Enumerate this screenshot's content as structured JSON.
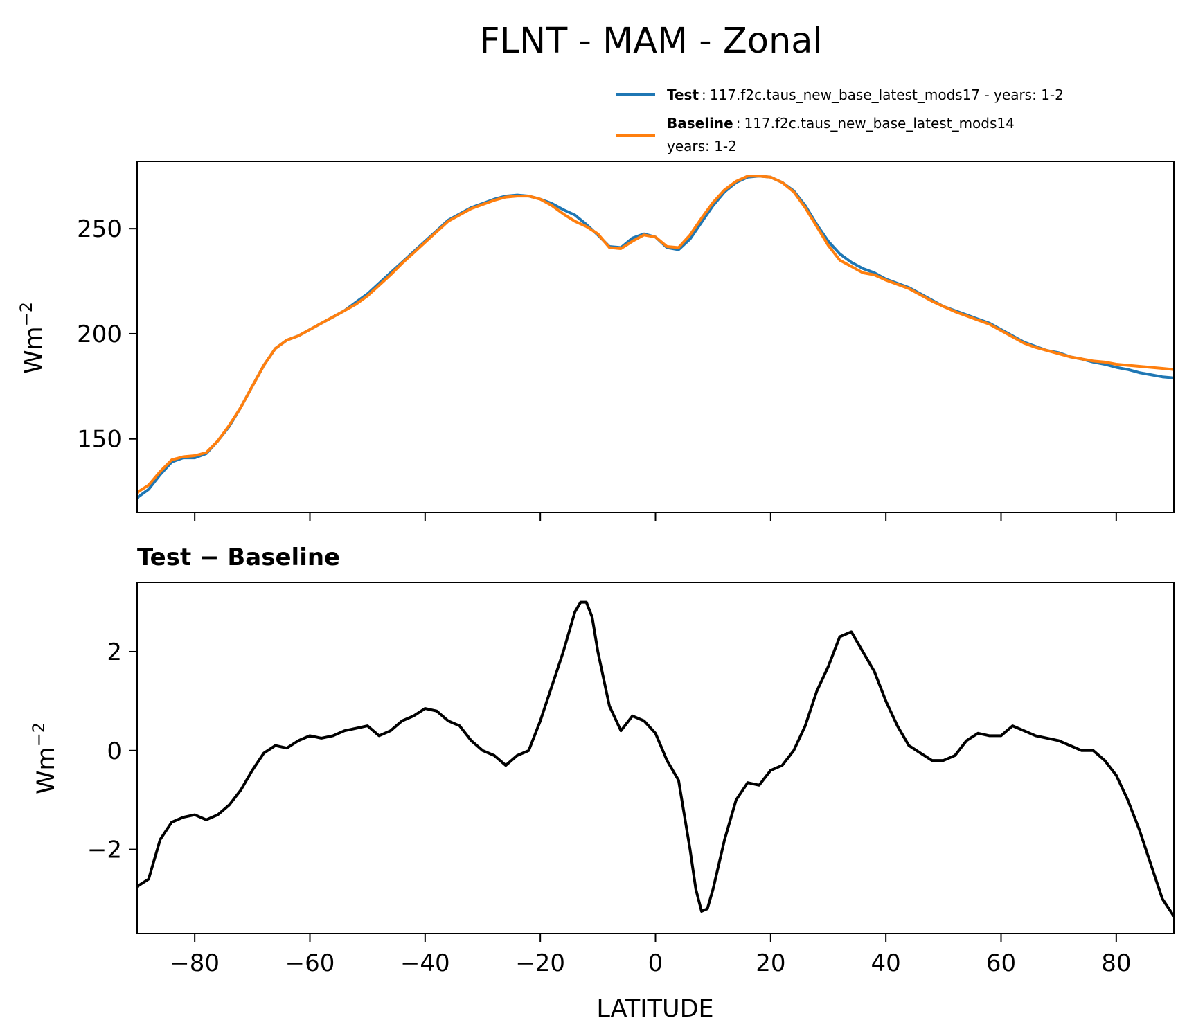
{
  "title": "FLNT - MAM - Zonal",
  "legend": [
    {
      "name": "Test",
      "separator": ":",
      "text": "117.f2c.taus_new_base_latest_mods17 - years: 1-2",
      "text2": "",
      "color": "#1f77b4"
    },
    {
      "name": "Baseline",
      "separator": ":",
      "text": "117.f2c.taus_new_base_latest_mods14",
      "text2": "years: 1-2",
      "color": "#ff7f0e"
    }
  ],
  "chart_data": [
    {
      "type": "line",
      "xlabel": "",
      "ylabel": "Wm",
      "ylabel_sup": "−2",
      "xlim": [
        -90,
        90
      ],
      "ylim": [
        115,
        282
      ],
      "xticks": [
        -80,
        -60,
        -40,
        -20,
        0,
        20,
        40,
        60,
        80
      ],
      "yticks": [
        150,
        200,
        250
      ],
      "ytick_labels": [
        "150",
        "200",
        "250"
      ],
      "legend_placement": "above top-right",
      "grid": false,
      "x": [
        -90,
        -88,
        -86,
        -84,
        -82,
        -80,
        -78,
        -76,
        -74,
        -72,
        -70,
        -68,
        -66,
        -64,
        -62,
        -60,
        -58,
        -56,
        -54,
        -52,
        -50,
        -48,
        -46,
        -44,
        -42,
        -40,
        -38,
        -36,
        -34,
        -32,
        -30,
        -28,
        -26,
        -24,
        -22,
        -20,
        -18,
        -16,
        -14,
        -12,
        -10,
        -8,
        -6,
        -4,
        -2,
        0,
        2,
        4,
        6,
        8,
        10,
        12,
        14,
        16,
        18,
        20,
        22,
        24,
        26,
        28,
        30,
        32,
        34,
        36,
        38,
        40,
        42,
        44,
        46,
        48,
        50,
        52,
        54,
        56,
        58,
        60,
        62,
        64,
        66,
        68,
        70,
        72,
        74,
        76,
        78,
        80,
        82,
        84,
        86,
        88,
        90
      ],
      "series": [
        {
          "name": "Test",
          "color": "#1f77b4",
          "values": [
            122,
            126,
            133,
            139,
            141,
            141,
            143,
            149,
            156,
            165,
            175,
            185,
            193,
            197,
            199,
            202,
            205,
            208,
            211,
            215,
            219,
            224,
            229,
            234,
            239,
            244,
            249,
            254,
            257,
            260,
            262,
            264,
            265.5,
            266,
            265.5,
            264,
            262,
            259,
            256.5,
            252,
            247,
            241.5,
            241,
            245.5,
            247.5,
            246,
            241,
            240,
            245,
            253,
            261,
            267.5,
            272,
            274.5,
            275,
            274.5,
            272,
            268,
            261,
            252,
            244,
            238,
            234,
            231,
            229,
            226,
            224,
            222,
            219,
            216,
            213,
            211,
            209,
            207,
            205,
            202,
            199,
            196,
            194,
            192,
            191,
            189,
            188,
            186.5,
            185.5,
            184,
            183,
            181.5,
            180.5,
            179.5,
            179
          ]
        },
        {
          "name": "Baseline",
          "color": "#ff7f0e",
          "values": [
            124.5,
            128,
            134.5,
            140,
            141.5,
            142,
            143.5,
            149,
            156.5,
            165,
            175,
            185,
            193,
            197,
            199,
            202,
            205,
            208,
            211,
            214,
            218,
            223,
            228,
            233.5,
            238.5,
            243.5,
            248.5,
            253.5,
            256.5,
            259.5,
            261.5,
            263.5,
            265,
            265.5,
            265.5,
            264,
            261,
            257,
            253.5,
            251,
            247.5,
            241,
            240.5,
            244,
            247,
            246,
            241.5,
            241,
            247,
            255,
            262.5,
            268.5,
            272.5,
            275,
            275,
            274.5,
            272,
            267.5,
            260,
            251,
            242,
            235,
            232,
            229,
            228,
            225.5,
            223.5,
            221.5,
            218.5,
            215.5,
            213,
            210.5,
            208.5,
            206.5,
            204.5,
            201.5,
            198.5,
            195.5,
            193.5,
            192,
            190.5,
            189,
            188,
            187,
            186.5,
            185.5,
            185,
            184.5,
            184,
            183.5,
            183
          ]
        }
      ]
    },
    {
      "type": "line",
      "title": "Test − Baseline",
      "xlabel": "LATITUDE",
      "ylabel": "Wm",
      "ylabel_sup": "−2",
      "xlim": [
        -90,
        90
      ],
      "ylim": [
        -3.7,
        3.4
      ],
      "xticks": [
        -80,
        -60,
        -40,
        -20,
        0,
        20,
        40,
        60,
        80
      ],
      "xtick_labels": [
        "−80",
        "−60",
        "−40",
        "−20",
        "0",
        "20",
        "40",
        "60",
        "80"
      ],
      "yticks": [
        -2,
        0,
        2
      ],
      "ytick_labels": [
        "−2",
        "0",
        "2"
      ],
      "grid": false,
      "x": [
        -90,
        -88,
        -86,
        -84,
        -82,
        -80,
        -78,
        -76,
        -74,
        -72,
        -70,
        -68,
        -66,
        -64,
        -62,
        -60,
        -58,
        -56,
        -54,
        -52,
        -50,
        -48,
        -46,
        -44,
        -42,
        -40,
        -38,
        -36,
        -34,
        -32,
        -30,
        -28,
        -26,
        -24,
        -22,
        -20,
        -18,
        -16,
        -14,
        -13,
        -12,
        -11,
        -10,
        -8,
        -6,
        -4,
        -2,
        0,
        2,
        4,
        6,
        7,
        8,
        9,
        10,
        12,
        14,
        16,
        18,
        20,
        22,
        24,
        26,
        28,
        30,
        32,
        34,
        36,
        38,
        40,
        42,
        44,
        46,
        48,
        50,
        52,
        54,
        56,
        58,
        60,
        62,
        64,
        66,
        68,
        70,
        72,
        74,
        76,
        78,
        80,
        82,
        84,
        86,
        88,
        90
      ],
      "series": [
        {
          "name": "",
          "color": "#000000",
          "values": [
            -2.75,
            -2.6,
            -1.8,
            -1.45,
            -1.35,
            -1.3,
            -1.4,
            -1.3,
            -1.1,
            -0.8,
            -0.4,
            -0.05,
            0.1,
            0.05,
            0.2,
            0.3,
            0.25,
            0.3,
            0.4,
            0.45,
            0.5,
            0.3,
            0.4,
            0.6,
            0.7,
            0.85,
            0.8,
            0.6,
            0.5,
            0.2,
            0.0,
            -0.1,
            -0.3,
            -0.1,
            0.0,
            0.6,
            1.3,
            2.0,
            2.8,
            3.0,
            3.0,
            2.7,
            2.0,
            0.9,
            0.4,
            0.7,
            0.6,
            0.35,
            -0.2,
            -0.6,
            -2.0,
            -2.8,
            -3.25,
            -3.2,
            -2.8,
            -1.8,
            -1.0,
            -0.65,
            -0.7,
            -0.4,
            -0.3,
            0.0,
            0.5,
            1.2,
            1.7,
            2.3,
            2.4,
            2.0,
            1.6,
            1.0,
            0.5,
            0.1,
            -0.05,
            -0.2,
            -0.2,
            -0.1,
            0.2,
            0.35,
            0.3,
            0.3,
            0.5,
            0.4,
            0.3,
            0.25,
            0.2,
            0.1,
            0.0,
            0.0,
            -0.2,
            -0.5,
            -1.0,
            -1.6,
            -2.3,
            -3.0,
            -3.35
          ]
        }
      ]
    }
  ]
}
